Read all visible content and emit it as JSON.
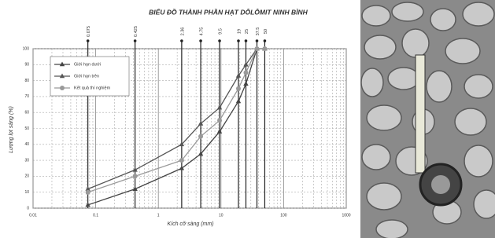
{
  "chart_data": {
    "type": "line",
    "title": "BIỂU ĐỒ THÀNH PHẦN HẠT DÔLÔMIT NINH BÌNH",
    "x_label": "Kích cỡ sàng (mm)",
    "y_label": "Lượng lọt sàng (%)",
    "x_scale": "log",
    "xlim": [
      0.01,
      1000
    ],
    "xticks": [
      0.01,
      0.1,
      1,
      10,
      100,
      1000
    ],
    "ylim": [
      0,
      100
    ],
    "yticks": [
      0,
      10,
      20,
      30,
      40,
      50,
      60,
      70,
      80,
      90,
      100
    ],
    "grid": true,
    "sieves": [
      0.075,
      0.425,
      2.36,
      4.75,
      9.5,
      19,
      25,
      37.5,
      50
    ],
    "x": [
      0.075,
      0.425,
      2.36,
      4.75,
      9.5,
      19,
      25,
      37.5,
      50
    ],
    "legend": "upper left",
    "series": [
      {
        "name": "Giới hạn dưới",
        "color": "#444444",
        "marker": "triangle",
        "values": [
          2,
          12,
          25,
          34,
          48,
          67,
          78,
          100,
          100
        ]
      },
      {
        "name": "Giới hạn trên",
        "color": "#555555",
        "marker": "triangle",
        "values": [
          12,
          24,
          40,
          53,
          63,
          83,
          90,
          100,
          100
        ]
      },
      {
        "name": "Kết quả thí nghiệm",
        "color": "#999999",
        "marker": "circle",
        "values": [
          10,
          20,
          30,
          45,
          55,
          75,
          85,
          100,
          100
        ]
      }
    ]
  }
}
